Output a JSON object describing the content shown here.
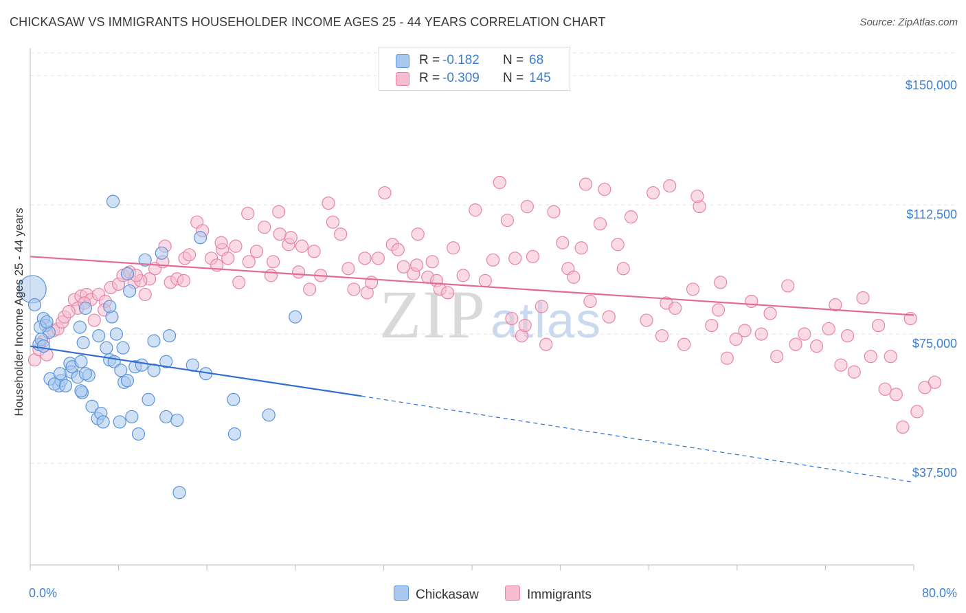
{
  "title": "CHICKASAW VS IMMIGRANTS HOUSEHOLDER INCOME AGES 25 - 44 YEARS CORRELATION CHART",
  "source": "Source: ZipAtlas.com",
  "watermark": {
    "zip": "ZIP",
    "atlas": "atlas"
  },
  "legend": {
    "chickasaw": {
      "r_label": "R =",
      "r_value": "-0.182",
      "n_label": "N =",
      "n_value": "68"
    },
    "immigrants": {
      "r_label": "R =",
      "r_value": "-0.309",
      "n_label": "N =",
      "n_value": "145"
    }
  },
  "colors": {
    "chickasaw_fill": "#a9c8ef",
    "chickasaw_stroke": "#5b93d8",
    "chickasaw_line": "#2f6fd0",
    "immigrants_fill": "#f6bdd0",
    "immigrants_stroke": "#e883a6",
    "immigrants_line": "#e36a95",
    "grid": "#e0e0e0",
    "axis_text": "#3d7fd1"
  },
  "chart_data": {
    "type": "scatter",
    "title": "CHICKASAW VS IMMIGRANTS HOUSEHOLDER INCOME AGES 25 - 44 YEARS CORRELATION CHART",
    "xlabel": "",
    "ylabel": "Householder Income Ages 25 - 44 years",
    "xlim": [
      0,
      80
    ],
    "ylim": [
      8000,
      158000
    ],
    "x_tick_labels": [
      "0.0%",
      "80.0%"
    ],
    "y_ticks": [
      37500,
      75000,
      112500,
      150000
    ],
    "y_tick_labels": [
      "$37,500",
      "$75,000",
      "$112,500",
      "$150,000"
    ],
    "grid": "horizontal dashed",
    "legend_position": "top-center",
    "series": [
      {
        "name": "Chickasaw",
        "points": [
          [
            0.2,
            88000
          ],
          [
            0.4,
            83500
          ],
          [
            0.8,
            72000
          ],
          [
            1.2,
            79500
          ],
          [
            1.4,
            77500
          ],
          [
            1.7,
            75500
          ],
          [
            0.9,
            77000
          ],
          [
            1.5,
            78500
          ],
          [
            1.0,
            73500
          ],
          [
            1.2,
            71500
          ],
          [
            1.8,
            62000
          ],
          [
            2.6,
            60000
          ],
          [
            2.8,
            61500
          ],
          [
            2.7,
            63500
          ],
          [
            3.6,
            66500
          ],
          [
            3.7,
            64000
          ],
          [
            3.8,
            65500
          ],
          [
            4.3,
            62500
          ],
          [
            4.6,
            67000
          ],
          [
            4.7,
            58000
          ],
          [
            4.5,
            77000
          ],
          [
            4.8,
            72500
          ],
          [
            5.0,
            82500
          ],
          [
            5.6,
            54000
          ],
          [
            5.3,
            63000
          ],
          [
            5.0,
            63500
          ],
          [
            6.2,
            74500
          ],
          [
            6.1,
            50500
          ],
          [
            6.4,
            52000
          ],
          [
            6.6,
            49500
          ],
          [
            6.9,
            71000
          ],
          [
            7.2,
            67500
          ],
          [
            7.4,
            80000
          ],
          [
            7.2,
            83000
          ],
          [
            7.6,
            67000
          ],
          [
            7.8,
            75000
          ],
          [
            8.1,
            49500
          ],
          [
            8.2,
            64500
          ],
          [
            8.4,
            71000
          ],
          [
            8.5,
            61000
          ],
          [
            8.8,
            61500
          ],
          [
            8.8,
            92500
          ],
          [
            9.0,
            87500
          ],
          [
            9.2,
            51000
          ],
          [
            9.5,
            65500
          ],
          [
            9.8,
            46000
          ],
          [
            10.1,
            66000
          ],
          [
            10.4,
            96500
          ],
          [
            10.7,
            56000
          ],
          [
            11.2,
            64500
          ],
          [
            11.2,
            73000
          ],
          [
            11.9,
            98500
          ],
          [
            12.3,
            51000
          ],
          [
            12.3,
            67000
          ],
          [
            12.6,
            74500
          ],
          [
            13.3,
            50000
          ],
          [
            13.5,
            29000
          ],
          [
            14.7,
            66000
          ],
          [
            15.4,
            103000
          ],
          [
            15.9,
            63500
          ],
          [
            18.4,
            56000
          ],
          [
            18.5,
            46000
          ],
          [
            21.6,
            51500
          ],
          [
            24.0,
            80000
          ],
          [
            7.5,
            113500
          ],
          [
            4.6,
            58500
          ],
          [
            2.2,
            60500
          ],
          [
            3.2,
            60000
          ]
        ],
        "trend": {
          "x0": 0,
          "y0": 71500,
          "x1": 30,
          "y1": 57000,
          "x_dash_end": 80,
          "y_dash_end": 32000
        }
      },
      {
        "name": "Immigrants",
        "points": [
          [
            0.4,
            67500
          ],
          [
            0.8,
            70500
          ],
          [
            1.2,
            73000
          ],
          [
            1.5,
            69000
          ],
          [
            2.1,
            76000
          ],
          [
            2.5,
            76500
          ],
          [
            2.9,
            78500
          ],
          [
            3.1,
            80000
          ],
          [
            4.0,
            85000
          ],
          [
            4.3,
            82500
          ],
          [
            4.6,
            86000
          ],
          [
            5.1,
            86500
          ],
          [
            5.5,
            85000
          ],
          [
            6.2,
            86500
          ],
          [
            6.8,
            84500
          ],
          [
            7.3,
            88500
          ],
          [
            8.0,
            89500
          ],
          [
            8.4,
            92000
          ],
          [
            9.0,
            93000
          ],
          [
            9.4,
            90000
          ],
          [
            10.4,
            86500
          ],
          [
            10.8,
            91000
          ],
          [
            11.3,
            94000
          ],
          [
            12.0,
            96000
          ],
          [
            12.2,
            100500
          ],
          [
            12.7,
            90000
          ],
          [
            13.3,
            91000
          ],
          [
            14.0,
            97000
          ],
          [
            14.4,
            98000
          ],
          [
            15.1,
            107500
          ],
          [
            15.6,
            105000
          ],
          [
            16.4,
            97000
          ],
          [
            16.9,
            95000
          ],
          [
            17.4,
            99500
          ],
          [
            17.9,
            97000
          ],
          [
            18.6,
            100500
          ],
          [
            18.9,
            90000
          ],
          [
            19.8,
            96000
          ],
          [
            20.5,
            99000
          ],
          [
            21.2,
            106000
          ],
          [
            21.8,
            92000
          ],
          [
            22.0,
            96000
          ],
          [
            22.6,
            104000
          ],
          [
            23.4,
            101000
          ],
          [
            23.6,
            103000
          ],
          [
            24.3,
            93000
          ],
          [
            24.6,
            100500
          ],
          [
            25.3,
            88000
          ],
          [
            25.7,
            99000
          ],
          [
            26.3,
            92000
          ],
          [
            27.4,
            107500
          ],
          [
            28.1,
            104000
          ],
          [
            28.8,
            94000
          ],
          [
            29.3,
            88000
          ],
          [
            30.3,
            97000
          ],
          [
            30.5,
            87000
          ],
          [
            30.9,
            90000
          ],
          [
            31.5,
            97000
          ],
          [
            32.1,
            116000
          ],
          [
            32.8,
            101000
          ],
          [
            33.3,
            99500
          ],
          [
            33.8,
            94500
          ],
          [
            34.7,
            92500
          ],
          [
            35.1,
            104000
          ],
          [
            36.0,
            91500
          ],
          [
            36.4,
            96000
          ],
          [
            36.8,
            90500
          ],
          [
            37.1,
            88000
          ],
          [
            37.8,
            87000
          ],
          [
            38.3,
            100000
          ],
          [
            39.2,
            92000
          ],
          [
            40.3,
            111000
          ],
          [
            41.2,
            90500
          ],
          [
            41.9,
            96500
          ],
          [
            42.5,
            119000
          ],
          [
            43.2,
            108000
          ],
          [
            43.6,
            79500
          ],
          [
            43.9,
            97000
          ],
          [
            44.5,
            74500
          ],
          [
            44.8,
            77500
          ],
          [
            45.5,
            97500
          ],
          [
            46.3,
            83000
          ],
          [
            46.7,
            72000
          ],
          [
            47.4,
            110500
          ],
          [
            48.2,
            101500
          ],
          [
            48.7,
            94000
          ],
          [
            49.2,
            91500
          ],
          [
            49.9,
            100000
          ],
          [
            50.3,
            118500
          ],
          [
            50.7,
            84500
          ],
          [
            51.6,
            107000
          ],
          [
            52.4,
            80000
          ],
          [
            53.2,
            101000
          ],
          [
            53.7,
            94000
          ],
          [
            54.4,
            109000
          ],
          [
            55.8,
            79000
          ],
          [
            56.4,
            116000
          ],
          [
            57.2,
            74500
          ],
          [
            57.6,
            84000
          ],
          [
            58.4,
            82500
          ],
          [
            59.2,
            72000
          ],
          [
            60.0,
            88000
          ],
          [
            60.6,
            112000
          ],
          [
            61.7,
            77500
          ],
          [
            62.3,
            82000
          ],
          [
            62.5,
            90000
          ],
          [
            63.1,
            68000
          ],
          [
            63.9,
            73500
          ],
          [
            64.7,
            76000
          ],
          [
            65.3,
            84500
          ],
          [
            66.2,
            75000
          ],
          [
            67.0,
            81000
          ],
          [
            67.6,
            68500
          ],
          [
            68.6,
            89000
          ],
          [
            69.3,
            72000
          ],
          [
            70.1,
            75000
          ],
          [
            71.2,
            71500
          ],
          [
            72.3,
            76500
          ],
          [
            72.9,
            83500
          ],
          [
            73.4,
            66000
          ],
          [
            74.0,
            74500
          ],
          [
            74.6,
            64000
          ],
          [
            75.4,
            85500
          ],
          [
            76.1,
            68500
          ],
          [
            76.8,
            77500
          ],
          [
            77.4,
            59000
          ],
          [
            77.9,
            68500
          ],
          [
            78.4,
            57500
          ],
          [
            79.0,
            48000
          ],
          [
            79.7,
            79500
          ],
          [
            80.3,
            52500
          ],
          [
            81.0,
            59500
          ],
          [
            81.9,
            61000
          ],
          [
            57.9,
            118000
          ],
          [
            60.4,
            115000
          ],
          [
            52.0,
            117000
          ],
          [
            45.0,
            112000
          ],
          [
            35.0,
            95000
          ],
          [
            27.0,
            113000
          ],
          [
            22.5,
            110500
          ],
          [
            19.7,
            110000
          ],
          [
            17.3,
            101500
          ],
          [
            13.9,
            90500
          ],
          [
            10.0,
            90500
          ],
          [
            9.6,
            92000
          ],
          [
            6.7,
            82000
          ],
          [
            5.8,
            79000
          ],
          [
            4.9,
            84000
          ],
          [
            3.5,
            81500
          ]
        ],
        "trend": {
          "x0": 0,
          "y0": 97500,
          "x1": 80,
          "y1": 80500
        }
      }
    ]
  },
  "bottom_legend": {
    "chickasaw": "Chickasaw",
    "immigrants": "Immigrants"
  }
}
